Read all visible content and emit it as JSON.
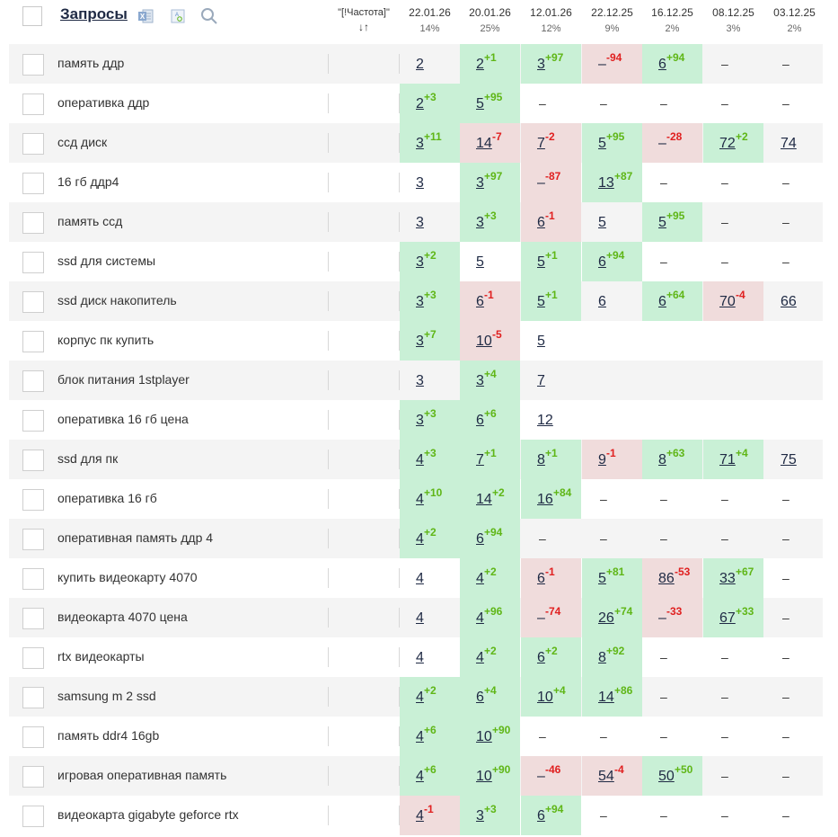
{
  "header": {
    "title": "Запросы",
    "freq_label": "\"[!Частота]\"",
    "sort_glyph": "↓↑",
    "icons": [
      "excel-icon",
      "format-icon",
      "search-icon"
    ]
  },
  "columns": [
    {
      "date": "22.01.26",
      "pct": "14%"
    },
    {
      "date": "20.01.26",
      "pct": "25%"
    },
    {
      "date": "12.01.26",
      "pct": "12%"
    },
    {
      "date": "22.12.25",
      "pct": "9%"
    },
    {
      "date": "16.12.25",
      "pct": "2%"
    },
    {
      "date": "08.12.25",
      "pct": "3%"
    },
    {
      "date": "03.12.25",
      "pct": "2%"
    }
  ],
  "colors": {
    "positive_bg": "#c9f0d6",
    "negative_bg": "#f0dcdc",
    "positive_text": "#5fb617",
    "negative_text": "#e02020"
  },
  "rows": [
    {
      "q": "память ддр",
      "cells": [
        {
          "v": "2",
          "s": "w"
        },
        {
          "v": "2",
          "d": "+1",
          "s": "g"
        },
        {
          "v": "3",
          "d": "+97",
          "s": "g"
        },
        {
          "v": "–",
          "d": "-94",
          "s": "r"
        },
        {
          "v": "6",
          "d": "+94",
          "s": "g"
        },
        {
          "v": "–",
          "s": "w",
          "dash": true
        },
        {
          "v": "–",
          "s": "w",
          "dash": true
        }
      ]
    },
    {
      "q": "оперативка ддр",
      "cells": [
        {
          "v": "2",
          "d": "+3",
          "s": "g"
        },
        {
          "v": "5",
          "d": "+95",
          "s": "g"
        },
        {
          "v": "–",
          "s": "w",
          "dash": true
        },
        {
          "v": "–",
          "s": "w",
          "dash": true
        },
        {
          "v": "–",
          "s": "w",
          "dash": true
        },
        {
          "v": "–",
          "s": "w",
          "dash": true
        },
        {
          "v": "–",
          "s": "w",
          "dash": true
        }
      ]
    },
    {
      "q": "ссд диск",
      "cells": [
        {
          "v": "3",
          "d": "+11",
          "s": "g"
        },
        {
          "v": "14",
          "d": "-7",
          "s": "r"
        },
        {
          "v": "7",
          "d": "-2",
          "s": "r"
        },
        {
          "v": "5",
          "d": "+95",
          "s": "g"
        },
        {
          "v": "–",
          "d": "-28",
          "s": "r"
        },
        {
          "v": "72",
          "d": "+2",
          "s": "g"
        },
        {
          "v": "74",
          "s": "w"
        }
      ]
    },
    {
      "q": "16 гб ддр4",
      "cells": [
        {
          "v": "3",
          "s": "w"
        },
        {
          "v": "3",
          "d": "+97",
          "s": "g"
        },
        {
          "v": "–",
          "d": "-87",
          "s": "r"
        },
        {
          "v": "13",
          "d": "+87",
          "s": "g"
        },
        {
          "v": "–",
          "s": "w",
          "dash": true
        },
        {
          "v": "–",
          "s": "w",
          "dash": true
        },
        {
          "v": "–",
          "s": "w",
          "dash": true
        }
      ]
    },
    {
      "q": "память ссд",
      "cells": [
        {
          "v": "3",
          "s": "w"
        },
        {
          "v": "3",
          "d": "+3",
          "s": "g"
        },
        {
          "v": "6",
          "d": "-1",
          "s": "r"
        },
        {
          "v": "5",
          "s": "w"
        },
        {
          "v": "5",
          "d": "+95",
          "s": "g"
        },
        {
          "v": "–",
          "s": "w",
          "dash": true
        },
        {
          "v": "–",
          "s": "w",
          "dash": true
        }
      ]
    },
    {
      "q": "ssd для системы",
      "cells": [
        {
          "v": "3",
          "d": "+2",
          "s": "g"
        },
        {
          "v": "5",
          "s": "w"
        },
        {
          "v": "5",
          "d": "+1",
          "s": "g"
        },
        {
          "v": "6",
          "d": "+94",
          "s": "g"
        },
        {
          "v": "–",
          "s": "w",
          "dash": true
        },
        {
          "v": "–",
          "s": "w",
          "dash": true
        },
        {
          "v": "–",
          "s": "w",
          "dash": true
        }
      ]
    },
    {
      "q": "ssd диск накопитель",
      "cells": [
        {
          "v": "3",
          "d": "+3",
          "s": "g"
        },
        {
          "v": "6",
          "d": "-1",
          "s": "r"
        },
        {
          "v": "5",
          "d": "+1",
          "s": "g"
        },
        {
          "v": "6",
          "s": "w"
        },
        {
          "v": "6",
          "d": "+64",
          "s": "g"
        },
        {
          "v": "70",
          "d": "-4",
          "s": "r"
        },
        {
          "v": "66",
          "s": "w"
        }
      ]
    },
    {
      "q": "корпус пк купить",
      "cells": [
        {
          "v": "3",
          "d": "+7",
          "s": "g"
        },
        {
          "v": "10",
          "d": "-5",
          "s": "r"
        },
        {
          "v": "5",
          "s": "w"
        },
        {
          "v": "",
          "s": "w"
        },
        {
          "v": "",
          "s": "w"
        },
        {
          "v": "",
          "s": "w"
        },
        {
          "v": "",
          "s": "w"
        }
      ]
    },
    {
      "q": "блок питания 1stplayer",
      "cells": [
        {
          "v": "3",
          "s": "w"
        },
        {
          "v": "3",
          "d": "+4",
          "s": "g"
        },
        {
          "v": "7",
          "s": "w"
        },
        {
          "v": "",
          "s": "w"
        },
        {
          "v": "",
          "s": "w"
        },
        {
          "v": "",
          "s": "w"
        },
        {
          "v": "",
          "s": "w"
        }
      ]
    },
    {
      "q": "оперативка 16 гб цена",
      "cells": [
        {
          "v": "3",
          "d": "+3",
          "s": "g"
        },
        {
          "v": "6",
          "d": "+6",
          "s": "g"
        },
        {
          "v": "12",
          "s": "w"
        },
        {
          "v": "",
          "s": "w"
        },
        {
          "v": "",
          "s": "w"
        },
        {
          "v": "",
          "s": "w"
        },
        {
          "v": "",
          "s": "w"
        }
      ]
    },
    {
      "q": "ssd для пк",
      "cells": [
        {
          "v": "4",
          "d": "+3",
          "s": "g"
        },
        {
          "v": "7",
          "d": "+1",
          "s": "g"
        },
        {
          "v": "8",
          "d": "+1",
          "s": "g"
        },
        {
          "v": "9",
          "d": "-1",
          "s": "r"
        },
        {
          "v": "8",
          "d": "+63",
          "s": "g"
        },
        {
          "v": "71",
          "d": "+4",
          "s": "g"
        },
        {
          "v": "75",
          "s": "w"
        }
      ]
    },
    {
      "q": "оперативка 16 гб",
      "cells": [
        {
          "v": "4",
          "d": "+10",
          "s": "g"
        },
        {
          "v": "14",
          "d": "+2",
          "s": "g"
        },
        {
          "v": "16",
          "d": "+84",
          "s": "g"
        },
        {
          "v": "–",
          "s": "w",
          "dash": true
        },
        {
          "v": "–",
          "s": "w",
          "dash": true
        },
        {
          "v": "–",
          "s": "w",
          "dash": true
        },
        {
          "v": "–",
          "s": "w",
          "dash": true
        }
      ]
    },
    {
      "q": "оперативная память ддр 4",
      "cells": [
        {
          "v": "4",
          "d": "+2",
          "s": "g"
        },
        {
          "v": "6",
          "d": "+94",
          "s": "g"
        },
        {
          "v": "–",
          "s": "w",
          "dash": true
        },
        {
          "v": "–",
          "s": "w",
          "dash": true
        },
        {
          "v": "–",
          "s": "w",
          "dash": true
        },
        {
          "v": "–",
          "s": "w",
          "dash": true
        },
        {
          "v": "–",
          "s": "w",
          "dash": true
        }
      ]
    },
    {
      "q": "купить видеокарту 4070",
      "cells": [
        {
          "v": "4",
          "s": "w"
        },
        {
          "v": "4",
          "d": "+2",
          "s": "g"
        },
        {
          "v": "6",
          "d": "-1",
          "s": "r"
        },
        {
          "v": "5",
          "d": "+81",
          "s": "g"
        },
        {
          "v": "86",
          "d": "-53",
          "s": "r"
        },
        {
          "v": "33",
          "d": "+67",
          "s": "g"
        },
        {
          "v": "–",
          "s": "w",
          "dash": true
        }
      ]
    },
    {
      "q": "видеокарта 4070 цена",
      "cells": [
        {
          "v": "4",
          "s": "w"
        },
        {
          "v": "4",
          "d": "+96",
          "s": "g"
        },
        {
          "v": "–",
          "d": "-74",
          "s": "r"
        },
        {
          "v": "26",
          "d": "+74",
          "s": "g"
        },
        {
          "v": "–",
          "d": "-33",
          "s": "r"
        },
        {
          "v": "67",
          "d": "+33",
          "s": "g"
        },
        {
          "v": "–",
          "s": "w",
          "dash": true
        }
      ]
    },
    {
      "q": "rtx видеокарты",
      "cells": [
        {
          "v": "4",
          "s": "w"
        },
        {
          "v": "4",
          "d": "+2",
          "s": "g"
        },
        {
          "v": "6",
          "d": "+2",
          "s": "g"
        },
        {
          "v": "8",
          "d": "+92",
          "s": "g"
        },
        {
          "v": "–",
          "s": "w",
          "dash": true
        },
        {
          "v": "–",
          "s": "w",
          "dash": true
        },
        {
          "v": "–",
          "s": "w",
          "dash": true
        }
      ]
    },
    {
      "q": "samsung m 2 ssd",
      "cells": [
        {
          "v": "4",
          "d": "+2",
          "s": "g"
        },
        {
          "v": "6",
          "d": "+4",
          "s": "g"
        },
        {
          "v": "10",
          "d": "+4",
          "s": "g"
        },
        {
          "v": "14",
          "d": "+86",
          "s": "g"
        },
        {
          "v": "–",
          "s": "w",
          "dash": true
        },
        {
          "v": "–",
          "s": "w",
          "dash": true
        },
        {
          "v": "–",
          "s": "w",
          "dash": true
        }
      ]
    },
    {
      "q": "память ddr4 16gb",
      "cells": [
        {
          "v": "4",
          "d": "+6",
          "s": "g"
        },
        {
          "v": "10",
          "d": "+90",
          "s": "g"
        },
        {
          "v": "–",
          "s": "w",
          "dash": true
        },
        {
          "v": "–",
          "s": "w",
          "dash": true
        },
        {
          "v": "–",
          "s": "w",
          "dash": true
        },
        {
          "v": "–",
          "s": "w",
          "dash": true
        },
        {
          "v": "–",
          "s": "w",
          "dash": true
        }
      ]
    },
    {
      "q": "игровая оперативная память",
      "cells": [
        {
          "v": "4",
          "d": "+6",
          "s": "g"
        },
        {
          "v": "10",
          "d": "+90",
          "s": "g"
        },
        {
          "v": "–",
          "d": "-46",
          "s": "r"
        },
        {
          "v": "54",
          "d": "-4",
          "s": "r"
        },
        {
          "v": "50",
          "d": "+50",
          "s": "g"
        },
        {
          "v": "–",
          "s": "w",
          "dash": true
        },
        {
          "v": "–",
          "s": "w",
          "dash": true
        }
      ]
    },
    {
      "q": "видеокарта gigabyte geforce rtx",
      "cells": [
        {
          "v": "4",
          "d": "-1",
          "s": "r"
        },
        {
          "v": "3",
          "d": "+3",
          "s": "g"
        },
        {
          "v": "6",
          "d": "+94",
          "s": "g"
        },
        {
          "v": "–",
          "s": "w",
          "dash": true
        },
        {
          "v": "–",
          "s": "w",
          "dash": true
        },
        {
          "v": "–",
          "s": "w",
          "dash": true
        },
        {
          "v": "–",
          "s": "w",
          "dash": true
        }
      ]
    }
  ]
}
